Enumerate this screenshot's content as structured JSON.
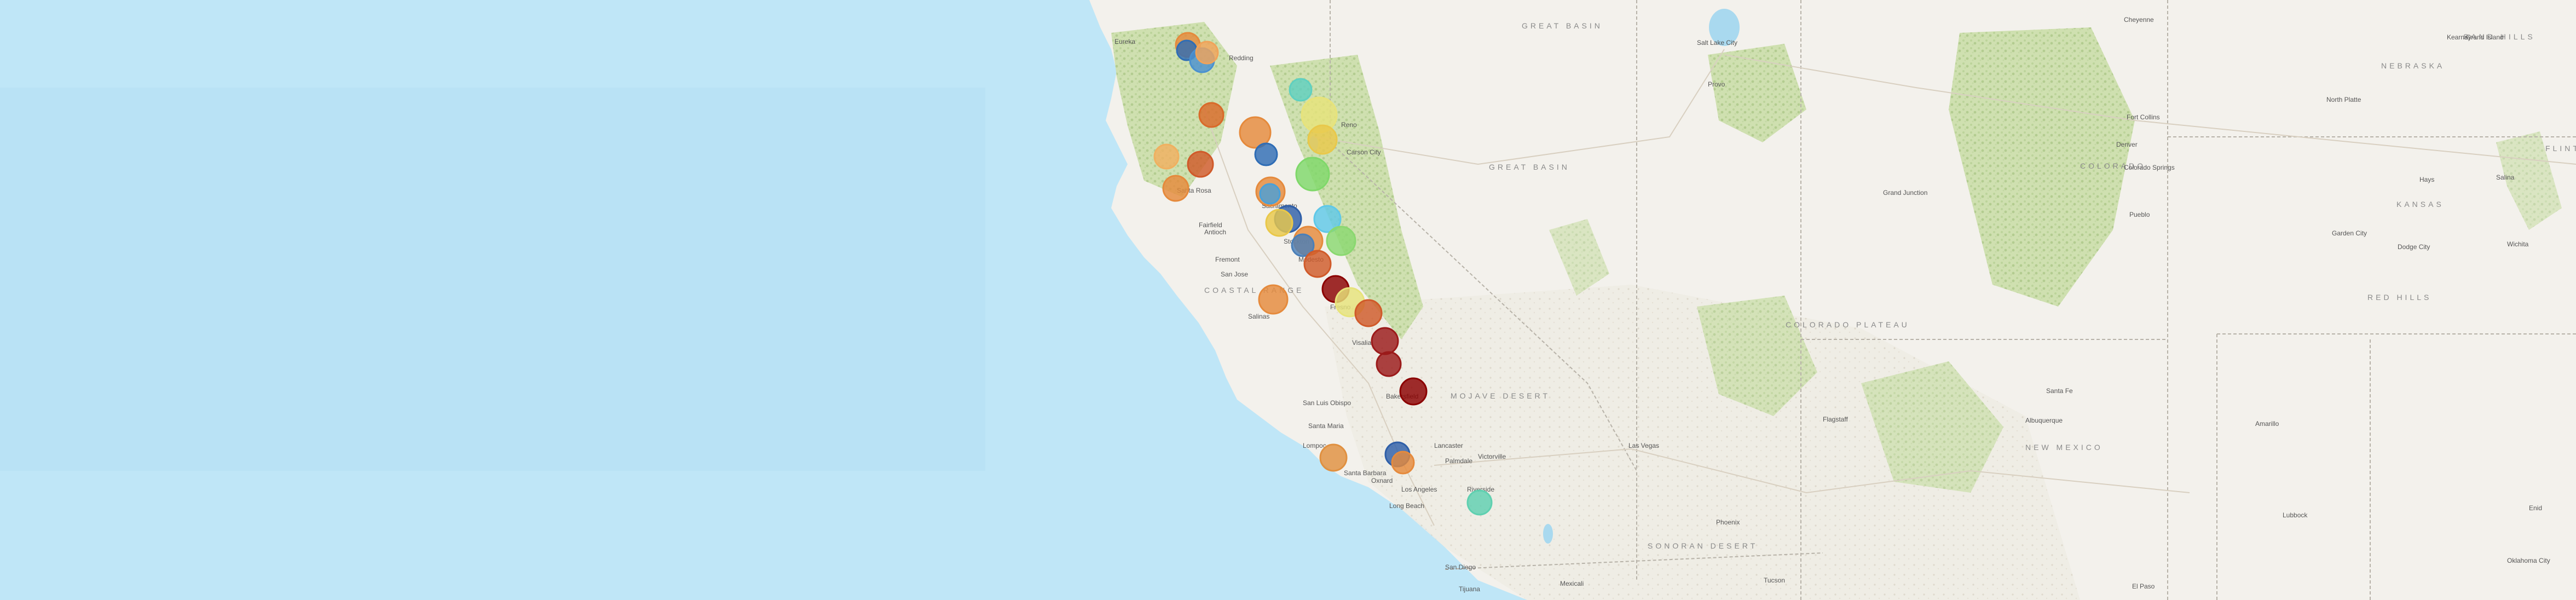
{
  "map": {
    "colors": {
      "ocean": "#bfe6f7",
      "ocean_deep": "#b3def3",
      "land": "#f3f1ec",
      "forest": "#cfe0b0",
      "desert": "#e8e2d6",
      "state_border": "#b7b2a8"
    },
    "region_labels": [
      {
        "id": "great-basin",
        "text": "GREAT BASIN"
      },
      {
        "id": "great-basin-2",
        "text": "GREAT BASIN"
      },
      {
        "id": "colorado-plateau",
        "text": "COLORADO PLATEAU"
      },
      {
        "id": "mojave-desert",
        "text": "MOJAVE DESERT"
      },
      {
        "id": "sonoran-desert",
        "text": "SONORAN DESERT"
      },
      {
        "id": "coastal-range",
        "text": "COASTAL RANGE"
      },
      {
        "id": "red-hills",
        "text": "RED HILLS"
      },
      {
        "id": "sand-hills",
        "text": "SAND HILLS"
      },
      {
        "id": "kansas",
        "text": "KANSAS"
      },
      {
        "id": "nebraska",
        "text": "NEBRASKA"
      },
      {
        "id": "new-mexico",
        "text": "NEW MEXICO"
      },
      {
        "id": "colorado",
        "text": "COLORADO"
      },
      {
        "id": "flint",
        "text": "FLINT"
      }
    ],
    "city_labels": [
      {
        "id": "eureka",
        "text": "Eureka"
      },
      {
        "id": "redding",
        "text": "Redding"
      },
      {
        "id": "reno",
        "text": "Reno"
      },
      {
        "id": "carson-city",
        "text": "Carson City"
      },
      {
        "id": "sacramento",
        "text": "Sacramento"
      },
      {
        "id": "santa-rosa",
        "text": "Santa Rosa"
      },
      {
        "id": "fairfield",
        "text": "Fairfield"
      },
      {
        "id": "antioch",
        "text": "Antioch"
      },
      {
        "id": "stockton",
        "text": "Stockton"
      },
      {
        "id": "modesto",
        "text": "Modesto"
      },
      {
        "id": "fremont",
        "text": "Fremont"
      },
      {
        "id": "san-jose",
        "text": "San Jose"
      },
      {
        "id": "salinas",
        "text": "Salinas"
      },
      {
        "id": "fresno",
        "text": "Fresno"
      },
      {
        "id": "visalia",
        "text": "Visalia"
      },
      {
        "id": "bakersfield",
        "text": "Bakersfield"
      },
      {
        "id": "san-luis-obispo",
        "text": "San Luis Obispo"
      },
      {
        "id": "santa-maria",
        "text": "Santa Maria"
      },
      {
        "id": "lompoc",
        "text": "Lompoc"
      },
      {
        "id": "santa-barbara",
        "text": "Santa Barbara"
      },
      {
        "id": "oxnard",
        "text": "Oxnard"
      },
      {
        "id": "los-angeles",
        "text": "Los Angeles"
      },
      {
        "id": "lancaster",
        "text": "Lancaster"
      },
      {
        "id": "palmdale",
        "text": "Palmdale"
      },
      {
        "id": "victorville",
        "text": "Victorville"
      },
      {
        "id": "long-beach",
        "text": "Long Beach"
      },
      {
        "id": "riverside",
        "text": "Riverside"
      },
      {
        "id": "san-diego",
        "text": "San Diego"
      },
      {
        "id": "tijuana",
        "text": "Tijuana"
      },
      {
        "id": "mexicali",
        "text": "Mexicali"
      },
      {
        "id": "las-vegas",
        "text": "Las Vegas"
      },
      {
        "id": "salt-lake-city",
        "text": "Salt Lake City"
      },
      {
        "id": "provo",
        "text": "Provo"
      },
      {
        "id": "phoenix",
        "text": "Phoenix"
      },
      {
        "id": "tucson",
        "text": "Tucson"
      },
      {
        "id": "albuquerque",
        "text": "Albuquerque"
      },
      {
        "id": "santa-fe",
        "text": "Santa Fe"
      },
      {
        "id": "denver",
        "text": "Denver"
      },
      {
        "id": "colorado-springs",
        "text": "Colorado Springs"
      },
      {
        "id": "pueblo",
        "text": "Pueblo"
      },
      {
        "id": "grand-junction",
        "text": "Grand Junction"
      },
      {
        "id": "flagstaff",
        "text": "Flagstaff"
      },
      {
        "id": "el-paso",
        "text": "El Paso"
      },
      {
        "id": "lubbock",
        "text": "Lubbock"
      },
      {
        "id": "amarillo",
        "text": "Amarillo"
      },
      {
        "id": "wichita",
        "text": "Wichita"
      },
      {
        "id": "salina",
        "text": "Salina"
      },
      {
        "id": "dodge-city",
        "text": "Dodge City"
      },
      {
        "id": "garden-city",
        "text": "Garden City"
      },
      {
        "id": "hays",
        "text": "Hays"
      },
      {
        "id": "north-platte",
        "text": "North Platte"
      },
      {
        "id": "kearney",
        "text": "Kearney"
      },
      {
        "id": "grand-island",
        "text": "Grand Island"
      },
      {
        "id": "cheyenne",
        "text": "Cheyenne"
      },
      {
        "id": "fort-collins",
        "text": "Fort Collins"
      },
      {
        "id": "oklahoma-city",
        "text": "Oklahoma City"
      },
      {
        "id": "enid",
        "text": "Enid"
      }
    ],
    "markers": [
      {
        "id": "m1",
        "color": "#e58a3c"
      },
      {
        "id": "m2",
        "color": "#2f6db5"
      },
      {
        "id": "m3",
        "color": "#4a90d0"
      },
      {
        "id": "m4",
        "color": "#f0a35a"
      },
      {
        "id": "m5",
        "color": "#d96a2a"
      },
      {
        "id": "m6",
        "color": "#5fd0c0"
      },
      {
        "id": "m7",
        "color": "#e7e37a"
      },
      {
        "id": "m8",
        "color": "#e58a3c"
      },
      {
        "id": "m9",
        "color": "#2f6db5"
      },
      {
        "id": "m10",
        "color": "#e9c84a"
      },
      {
        "id": "m11",
        "color": "#f0b060"
      },
      {
        "id": "m12",
        "color": "#d05a2a"
      },
      {
        "id": "m13",
        "color": "#e58a3c"
      },
      {
        "id": "m14",
        "color": "#7fd86a"
      },
      {
        "id": "m15",
        "color": "#e58a3c"
      },
      {
        "id": "m16",
        "color": "#4aa0d8"
      },
      {
        "id": "m17",
        "color": "#2f5fa8"
      },
      {
        "id": "m18",
        "color": "#e9c84a"
      },
      {
        "id": "m19",
        "color": "#e58a3c"
      },
      {
        "id": "m20",
        "color": "#5fc8e8"
      },
      {
        "id": "m21",
        "color": "#8ad870"
      },
      {
        "id": "m22",
        "color": "#4a7fb8"
      },
      {
        "id": "m23",
        "color": "#d05a2a"
      },
      {
        "id": "m24",
        "color": "#e58a3c"
      },
      {
        "id": "m25",
        "color": "#8b0000"
      },
      {
        "id": "m26",
        "color": "#e7e37a"
      },
      {
        "id": "m27",
        "color": "#d05a2a"
      },
      {
        "id": "m28",
        "color": "#9b1a1a"
      },
      {
        "id": "m29",
        "color": "#9b1a1a"
      },
      {
        "id": "m30",
        "color": "#8b0000"
      },
      {
        "id": "m31",
        "color": "#2f5fa8"
      },
      {
        "id": "m32",
        "color": "#e58a3c"
      },
      {
        "id": "m33",
        "color": "#e09040"
      },
      {
        "id": "m34",
        "color": "#5fd0b0"
      }
    ]
  }
}
